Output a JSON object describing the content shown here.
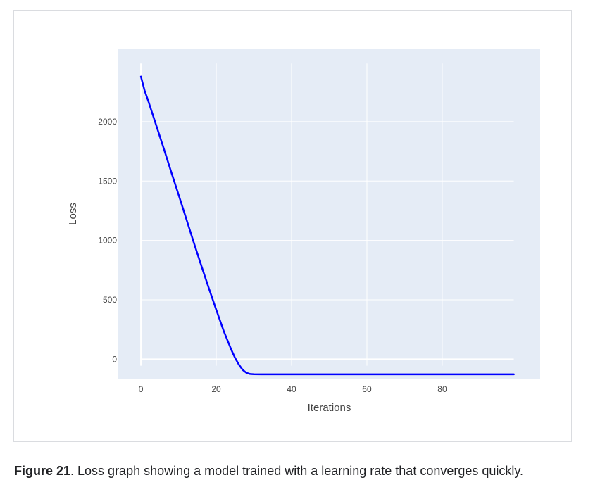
{
  "caption": {
    "label": "Figure 21",
    "text": ". Loss graph showing a model trained with a learning rate that converges quickly."
  },
  "colors": {
    "plot_background": "#e5ecf6",
    "grid": "#ffffff",
    "line": "#0000ff",
    "tick_text": "#444444"
  },
  "chart_data": {
    "type": "line",
    "xlabel": "Iterations",
    "ylabel": "Loss",
    "xlim": [
      -6,
      106
    ],
    "ylim": [
      -170,
      2610
    ],
    "xticks": [
      0,
      20,
      40,
      60,
      80
    ],
    "yticks": [
      0,
      500,
      1000,
      1500,
      2000
    ],
    "grid": true,
    "series": [
      {
        "x": [
          0,
          1,
          2,
          4,
          6,
          8,
          10,
          12,
          14,
          16,
          18,
          20,
          22,
          24,
          25,
          26,
          27,
          28,
          29,
          30,
          32,
          35,
          40,
          50,
          60,
          70,
          80,
          90,
          99
        ],
        "y": [
          2380,
          2260,
          2170,
          1975,
          1780,
          1580,
          1385,
          1185,
          985,
          790,
          600,
          415,
          235,
          80,
          10,
          -45,
          -90,
          -115,
          -125,
          -127,
          -128,
          -128,
          -128,
          -128,
          -128,
          -128,
          -128,
          -128,
          -128
        ]
      }
    ]
  }
}
